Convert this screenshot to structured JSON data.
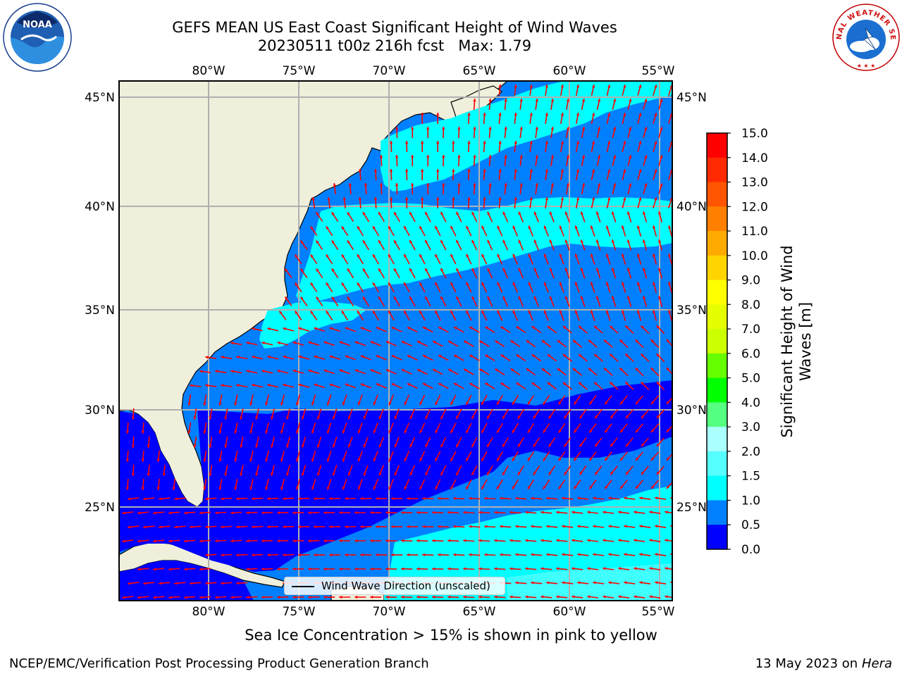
{
  "header": {
    "title_line1": "GEFS MEAN US East Coast Significant Height of Wind Waves",
    "title_line2": "20230511 t00z 216h fcst   Max: 1.79"
  },
  "logos": {
    "left": "NOAA",
    "right": "NATIONAL WEATHER SERVICE"
  },
  "map": {
    "lon_labels": [
      "80°W",
      "75°W",
      "70°W",
      "65°W",
      "60°W",
      "55°W"
    ],
    "lat_labels": [
      "45°N",
      "40°N",
      "35°N",
      "30°N",
      "25°N"
    ],
    "legend_label": "Wind Wave Direction (unscaled)",
    "ocean_colors": {
      "0.0-0.5": "#0000ff",
      "0.5-1.0": "#0080ff",
      "1.0-1.5": "#00ffff",
      "1.5-2.0": "#40ffff"
    },
    "land_color": "#efefdc",
    "arrow_color": "#ff0000"
  },
  "colorbar": {
    "label": "Significant Height of Wind Waves [m]",
    "ticks": [
      "15.0",
      "14.0",
      "13.0",
      "12.0",
      "11.0",
      "10.0",
      "9.0",
      "8.0",
      "7.0",
      "6.0",
      "5.0",
      "4.0",
      "3.0",
      "2.0",
      "1.5",
      "1.0",
      "0.5",
      "0.0"
    ],
    "colors": [
      "#ff0000",
      "#ff2000",
      "#ff4000",
      "#ff6000",
      "#ff8000",
      "#ffa000",
      "#ffc000",
      "#ffe000",
      "#ffff00",
      "#e0ff00",
      "#c0ff00",
      "#80ff00",
      "#40ff00",
      "#00e000",
      "#00ff40",
      "#60ff80",
      "#a0fff0",
      "#40ffff",
      "#00ffff",
      "#0080ff",
      "#0000ff"
    ]
  },
  "chart_data": {
    "type": "heatmap",
    "title": "GEFS MEAN US East Coast Significant Height of Wind Waves",
    "subtitle": "20230511 t00z 216h fcst   Max: 1.79",
    "max": 1.79,
    "lon_range": [
      -85,
      -54.3
    ],
    "lat_range": [
      20.5,
      45.9
    ],
    "colorbar_ticks": [
      0.0,
      0.5,
      1.0,
      1.5,
      2.0,
      3.0,
      4.0,
      5.0,
      6.0,
      7.0,
      8.0,
      9.0,
      10.0,
      11.0,
      12.0,
      13.0,
      14.0,
      15.0
    ],
    "colorbar_label": "Significant Height of Wind Waves [m]",
    "grid": true,
    "legend": "Wind Wave Direction (unscaled)",
    "legend_position": "bottom-center"
  },
  "notes": {
    "ice": "Sea Ice Concentration > 15% is shown in pink to yellow"
  },
  "footer": {
    "left": "NCEP/EMC/Verification Post Processing Product Generation Branch",
    "right_date": "13 May 2023 on",
    "right_machine": "Hera"
  }
}
